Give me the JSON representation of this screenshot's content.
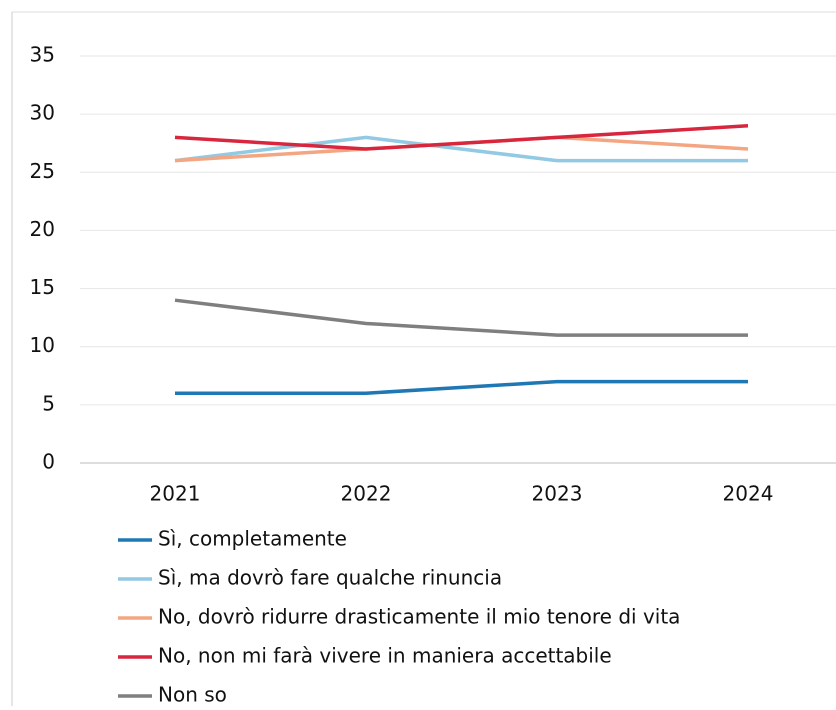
{
  "chart_data": {
    "type": "line",
    "categories": [
      "2021",
      "2022",
      "2023",
      "2024"
    ],
    "series": [
      {
        "name": "Sì, completamente",
        "color": "#1f78b4",
        "values": [
          6,
          6,
          7,
          7
        ]
      },
      {
        "name": "Sì, ma dovrò fare qualche rinuncia",
        "color": "#92c9e3",
        "values": [
          26,
          28,
          26,
          26
        ]
      },
      {
        "name": "No, dovrò ridurre drasticamente il mio tenore di vita",
        "color": "#f4a582",
        "values": [
          26,
          27,
          28,
          27
        ]
      },
      {
        "name": "No, non mi farà vivere in maniera accettabile",
        "color": "#d7263d",
        "values": [
          28,
          27,
          28,
          29
        ]
      },
      {
        "name": "Non so",
        "color": "#7f7f7f",
        "values": [
          14,
          12,
          11,
          11
        ]
      }
    ],
    "ylim": [
      0,
      35
    ],
    "yticks": [
      0,
      5,
      10,
      15,
      20,
      25,
      30,
      35
    ],
    "grid": true,
    "legend": "bottom"
  }
}
